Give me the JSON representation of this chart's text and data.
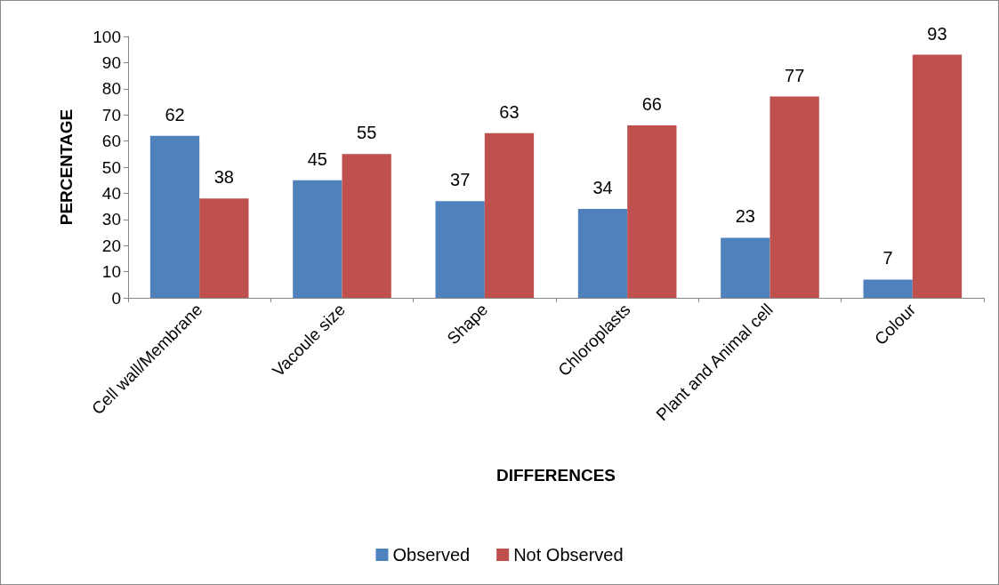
{
  "chart_data": {
    "type": "bar",
    "xlabel": "DIFFERENCES",
    "ylabel": "PERCENTAGE",
    "categories": [
      "Cell wall/Membrane",
      "Vacoule size",
      "Shape",
      "Chloroplasts",
      "Plant and Animal cell",
      "Colour"
    ],
    "series": [
      {
        "name": "Observed",
        "color": "#4f81bd",
        "values": [
          62,
          45,
          37,
          34,
          23,
          7
        ]
      },
      {
        "name": "Not Observed",
        "color": "#c0504d",
        "values": [
          38,
          55,
          63,
          66,
          77,
          93
        ]
      }
    ],
    "ylim": [
      0,
      100
    ],
    "yticks": [
      0,
      10,
      20,
      30,
      40,
      50,
      60,
      70,
      80,
      90,
      100
    ],
    "grid": false,
    "legend": "bottom",
    "data_labels": true
  }
}
